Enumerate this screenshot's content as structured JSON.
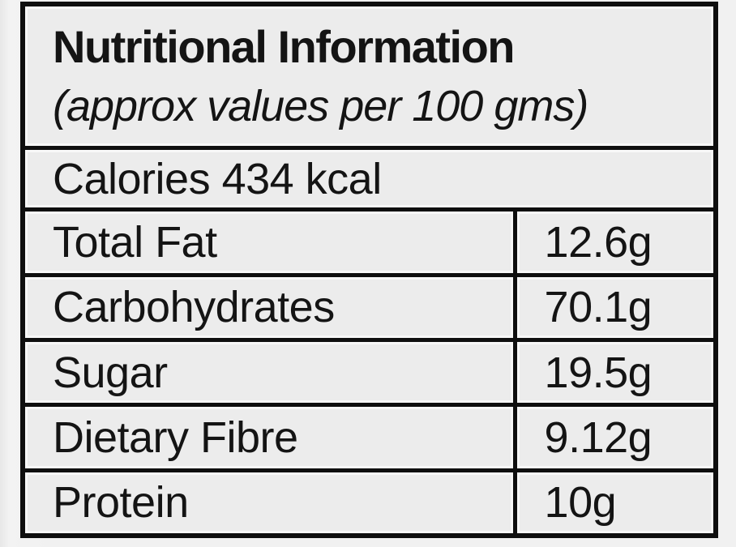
{
  "header": {
    "title": "Nutritional Information",
    "subtitle": "(approx values per 100 gms)"
  },
  "calories_row": {
    "text": "Calories 434 kcal"
  },
  "rows": [
    {
      "label": "Total Fat",
      "value": "12.6g"
    },
    {
      "label": "Carbohydrates",
      "value": "70.1g"
    },
    {
      "label": "Sugar",
      "value": "19.5g"
    },
    {
      "label": "Dietary Fibre",
      "value": "9.12g"
    },
    {
      "label": "Protein",
      "value": "10g"
    }
  ],
  "colors": {
    "page_bg": "#f1f1f1",
    "cell_bg": "#ececec",
    "grid_border": "#0f0f0f",
    "text": "#141414"
  }
}
